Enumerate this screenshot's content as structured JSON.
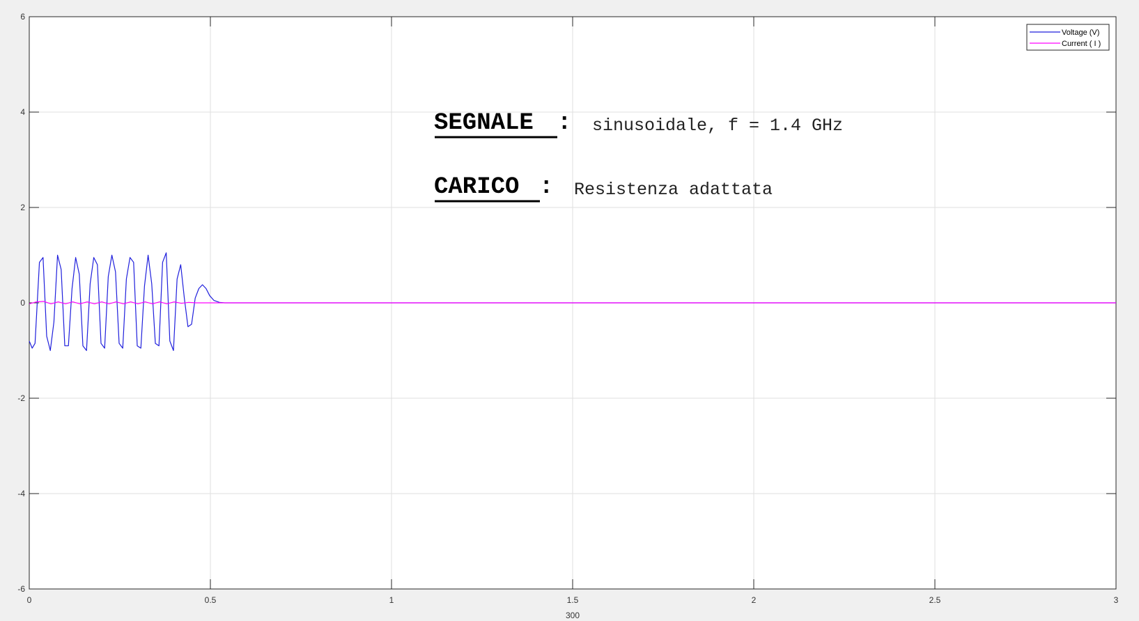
{
  "chart_data": {
    "type": "line",
    "title": "",
    "xlabel": "300",
    "ylabel": "",
    "xlim": [
      0,
      3
    ],
    "ylim": [
      -6,
      6
    ],
    "xticks": [
      "0",
      "0.5",
      "1",
      "1.5",
      "2",
      "2.5",
      "3"
    ],
    "yticks": [
      "6",
      "4",
      "2",
      "0",
      "-2",
      "-4",
      "-6"
    ],
    "grid": true,
    "legend_position": "top-right",
    "series": [
      {
        "name": "Voltage (V)",
        "color": "#1f1fdc",
        "x": [
          0,
          0.008,
          0.016,
          0.028,
          0.038,
          0.048,
          0.058,
          0.068,
          0.078,
          0.088,
          0.098,
          0.108,
          0.118,
          0.128,
          0.138,
          0.148,
          0.158,
          0.168,
          0.178,
          0.188,
          0.198,
          0.208,
          0.218,
          0.228,
          0.238,
          0.248,
          0.258,
          0.268,
          0.278,
          0.288,
          0.298,
          0.308,
          0.318,
          0.328,
          0.338,
          0.348,
          0.358,
          0.368,
          0.378,
          0.388,
          0.398,
          0.408,
          0.418,
          0.428,
          0.438,
          0.448,
          0.458,
          0.468,
          0.478,
          0.488,
          0.498,
          0.51,
          0.525,
          0.54,
          0.6,
          1.0,
          1.5,
          2.0,
          2.5,
          3.0
        ],
        "y": [
          -0.8,
          -0.95,
          -0.85,
          0.85,
          0.95,
          -0.7,
          -1.0,
          -0.4,
          1.0,
          0.7,
          -0.9,
          -0.9,
          0.3,
          0.95,
          0.6,
          -0.9,
          -1.0,
          0.4,
          0.95,
          0.8,
          -0.85,
          -0.95,
          0.55,
          1.0,
          0.65,
          -0.85,
          -0.95,
          0.5,
          0.95,
          0.85,
          -0.9,
          -0.95,
          0.35,
          1.0,
          0.4,
          -0.85,
          -0.9,
          0.85,
          1.05,
          -0.8,
          -1.0,
          0.5,
          0.8,
          0.1,
          -0.5,
          -0.45,
          0.1,
          0.3,
          0.38,
          0.3,
          0.15,
          0.05,
          0.01,
          0,
          0,
          0,
          0,
          0,
          0,
          0
        ]
      },
      {
        "name": "Current ( I )",
        "color": "#ff00ff",
        "x": [
          0,
          0.02,
          0.04,
          0.06,
          0.08,
          0.1,
          0.12,
          0.14,
          0.16,
          0.18,
          0.2,
          0.22,
          0.24,
          0.26,
          0.28,
          0.3,
          0.32,
          0.34,
          0.36,
          0.38,
          0.4,
          0.42,
          0.44,
          0.46,
          0.5,
          1.0,
          1.5,
          2.0,
          2.5,
          3.0
        ],
        "y": [
          -0.02,
          0.02,
          0.03,
          -0.02,
          0.02,
          -0.02,
          0.02,
          -0.02,
          0.02,
          -0.02,
          0.02,
          -0.02,
          0.02,
          -0.02,
          0.02,
          -0.02,
          0.02,
          -0.02,
          0.02,
          -0.02,
          0.02,
          -0.01,
          0.01,
          0,
          0,
          0,
          0,
          0,
          0,
          0
        ]
      }
    ]
  },
  "annotations": {
    "line1_head": "SEGNALE",
    "line1_colon": ":",
    "line1_text": "sinusoidale, f = 1.4 GHz",
    "line2_head": "CARICO",
    "line2_colon": ":",
    "line2_text": "Resistenza adattata"
  }
}
